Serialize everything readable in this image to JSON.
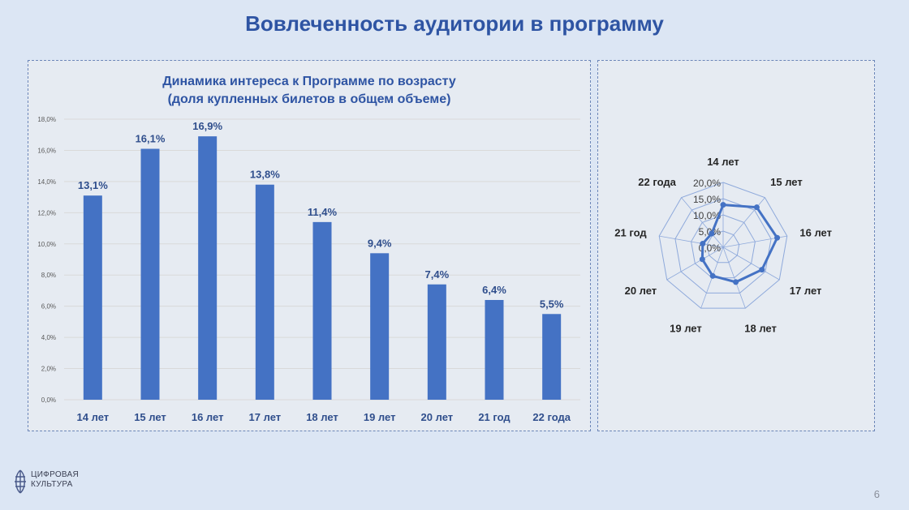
{
  "slide": {
    "title": "Вовлеченность аудитории в программу",
    "page_number": "6",
    "logo_line1": "ЦИФРОВАЯ",
    "logo_line2": "КУЛЬТУРА"
  },
  "colors": {
    "bar": "#4472c4",
    "title": "#2e54a3",
    "grid": "#d9d9d9",
    "radar_grid": "#8ea9db"
  },
  "chart_data": [
    {
      "type": "bar",
      "title": "Динамика интереса к Программе по возрасту",
      "subtitle": "(доля купленных билетов в общем объеме)",
      "categories": [
        "14 лет",
        "15 лет",
        "16 лет",
        "17 лет",
        "18 лет",
        "19 лет",
        "20 лет",
        "21 год",
        "22 года"
      ],
      "values": [
        13.1,
        16.1,
        16.9,
        13.8,
        11.4,
        9.4,
        7.4,
        6.4,
        5.5
      ],
      "value_labels": [
        "13,1%",
        "16,1%",
        "16,9%",
        "13,8%",
        "11,4%",
        "9,4%",
        "7,4%",
        "6,4%",
        "5,5%"
      ],
      "ylim": [
        0,
        18
      ],
      "yticks": [
        "0,0%",
        "2,0%",
        "4,0%",
        "6,0%",
        "8,0%",
        "10,0%",
        "12,0%",
        "14,0%",
        "16,0%",
        "18,0%"
      ],
      "grid": true,
      "xlabel": "",
      "ylabel": ""
    },
    {
      "type": "radar",
      "categories": [
        "14 лет",
        "15 лет",
        "16 лет",
        "17 лет",
        "18 лет",
        "19 лет",
        "20 лет",
        "21 год",
        "22 года"
      ],
      "values": [
        13.1,
        16.1,
        16.9,
        13.8,
        11.4,
        9.4,
        7.4,
        6.4,
        5.5
      ],
      "rlim": [
        0,
        20
      ],
      "rticks": [
        "0,0%",
        "5,0%",
        "10,0%",
        "15,0%",
        "20,0%"
      ]
    }
  ]
}
